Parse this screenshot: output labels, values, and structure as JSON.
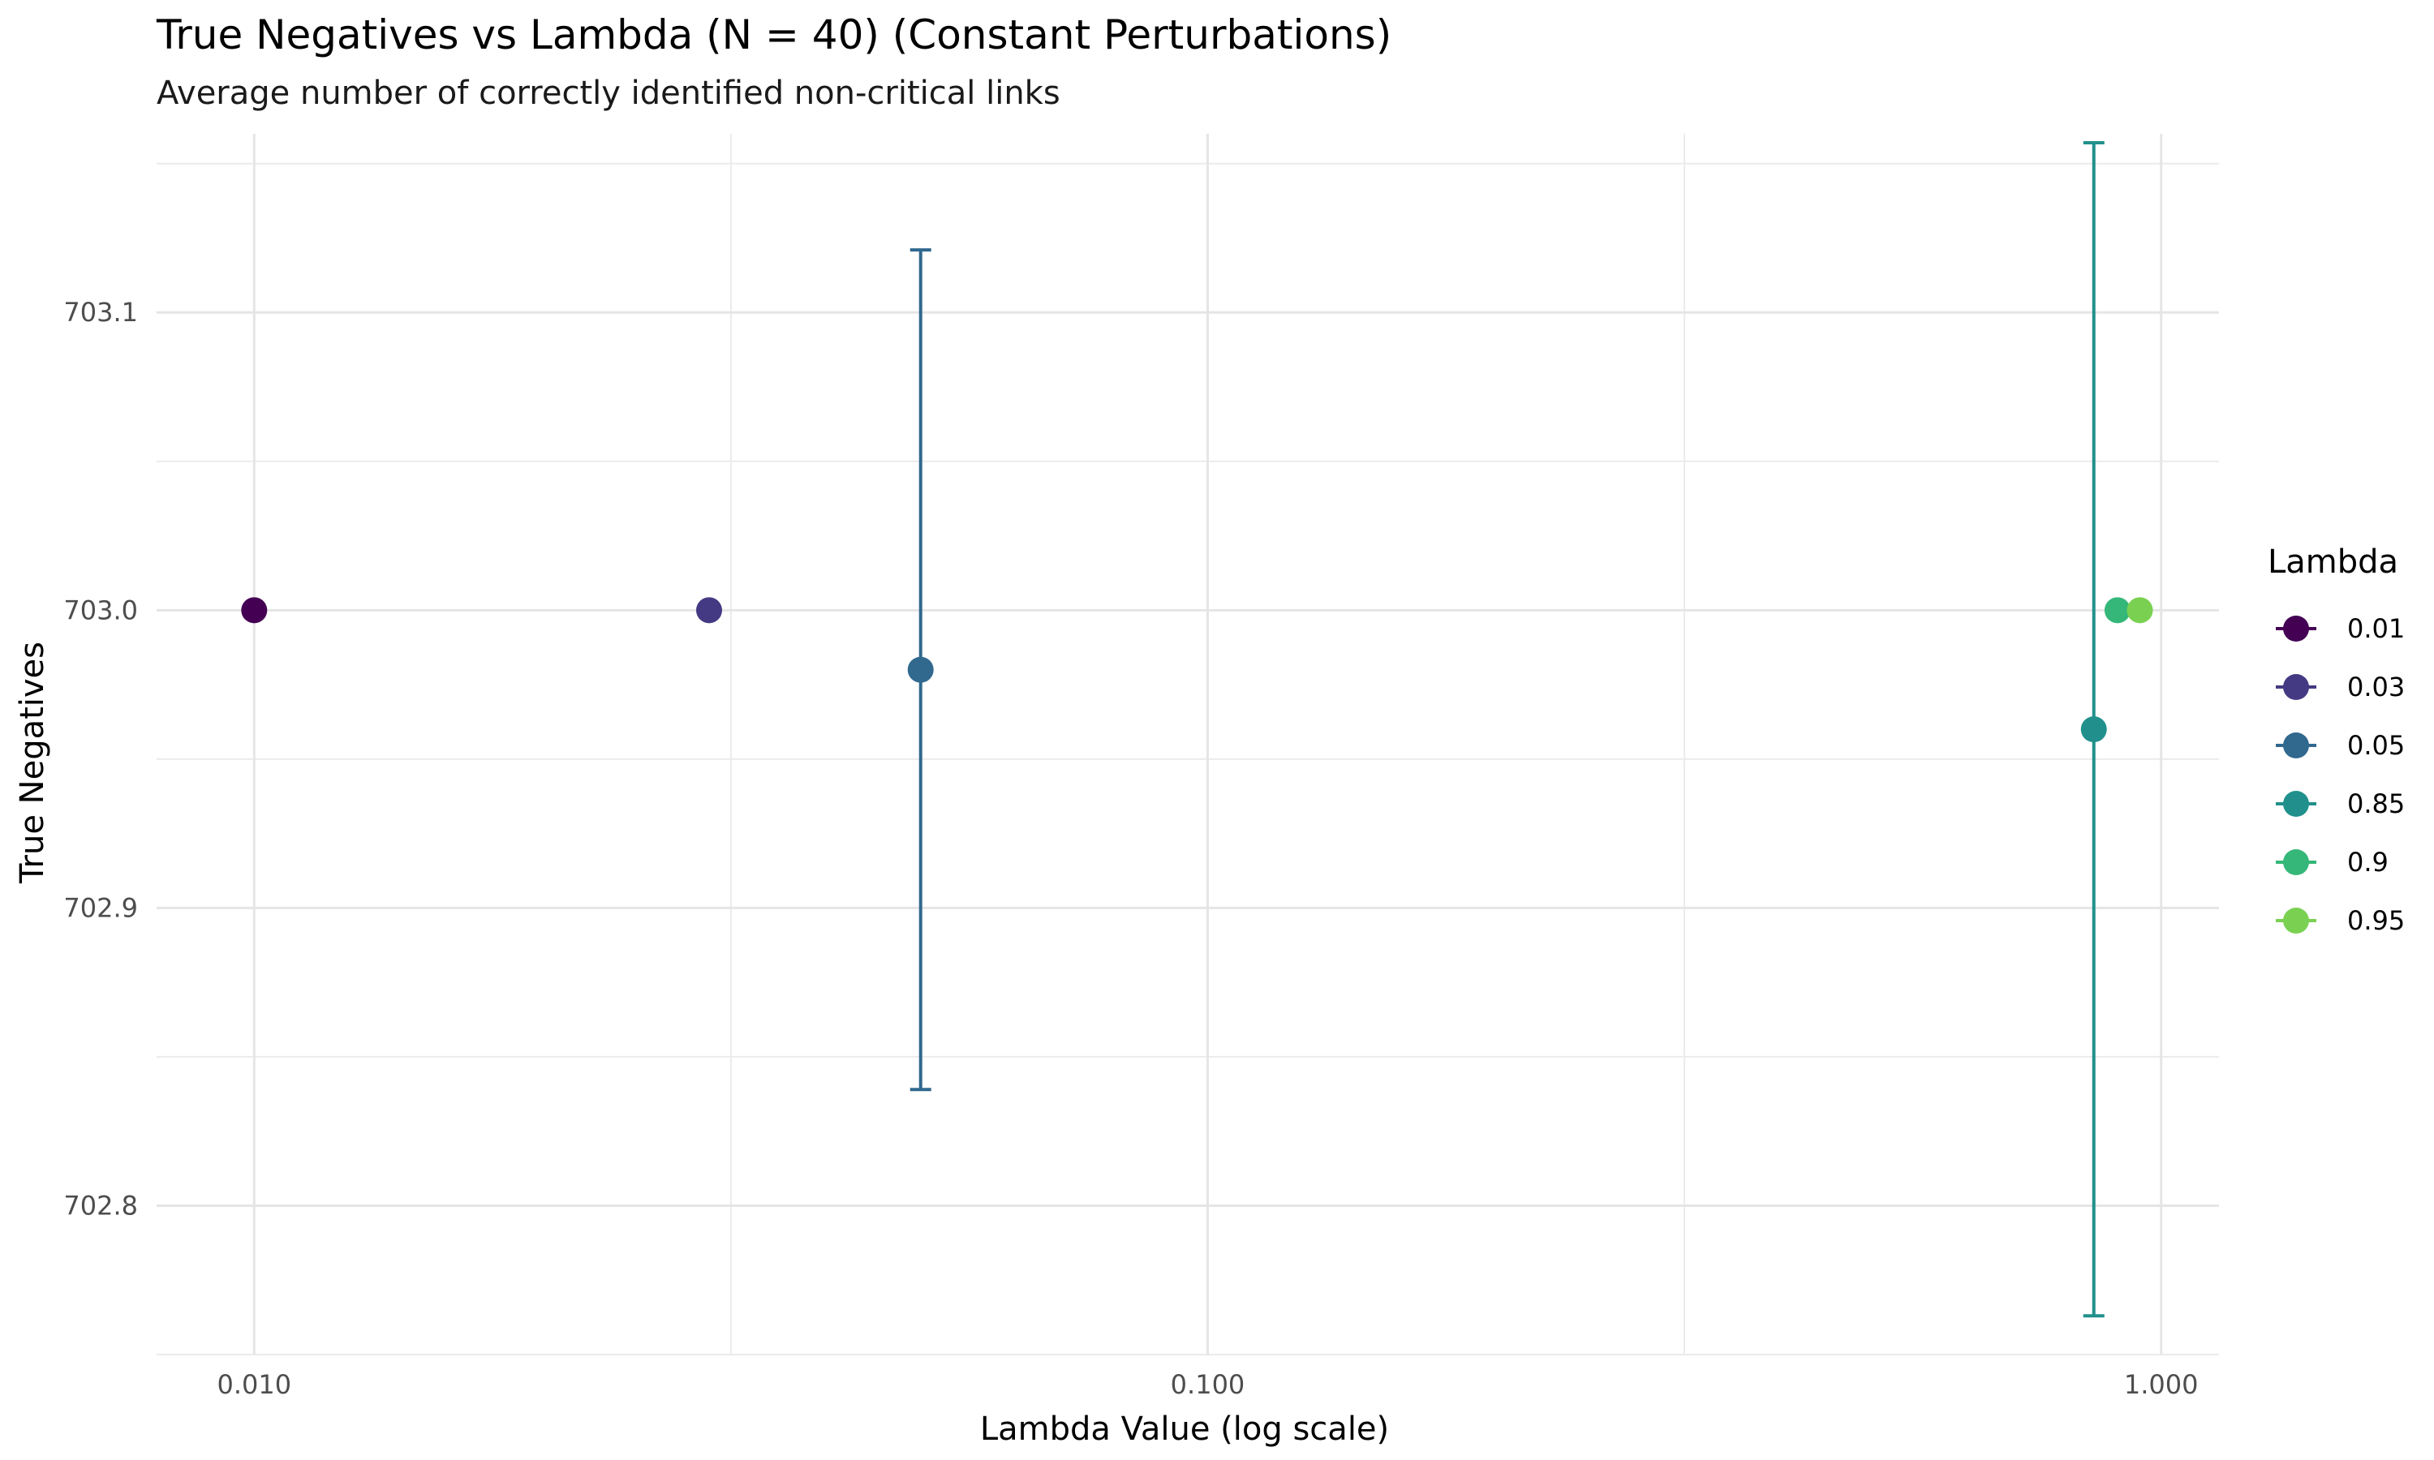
{
  "chart_data": {
    "type": "scatter",
    "title": "True Negatives vs Lambda (N = 40) (Constant Perturbations)",
    "subtitle": "Average number of correctly identified non-critical links",
    "xlabel": "Lambda Value (log scale)",
    "ylabel": "True Negatives",
    "x_scale": "log10",
    "xlim": [
      0.0079,
      1.15
    ],
    "ylim": [
      702.75,
      703.16
    ],
    "x_ticks": [
      {
        "value": 0.01,
        "label": "0.010"
      },
      {
        "value": 0.1,
        "label": "0.100"
      },
      {
        "value": 1.0,
        "label": "1.000"
      }
    ],
    "y_ticks": [
      {
        "value": 702.8,
        "label": "702.8"
      },
      {
        "value": 702.9,
        "label": "702.9"
      },
      {
        "value": 703.0,
        "label": "703.0"
      },
      {
        "value": 703.1,
        "label": "703.1"
      }
    ],
    "grid": true,
    "legend": {
      "title": "Lambda",
      "position": "right"
    },
    "series": [
      {
        "name": "0.01",
        "color": "#440154",
        "x": 0.01,
        "y": 703.0
      },
      {
        "name": "0.03",
        "color": "#443A83",
        "x": 0.03,
        "y": 703.0
      },
      {
        "name": "0.05",
        "color": "#31688E",
        "x": 0.05,
        "y": 702.98,
        "ymin": 702.839,
        "ymax": 703.121
      },
      {
        "name": "0.85",
        "color": "#21908C",
        "x": 0.85,
        "y": 702.96,
        "ymin": 702.763,
        "ymax": 703.157
      },
      {
        "name": "0.9",
        "color": "#35B779",
        "x": 0.9,
        "y": 703.0
      },
      {
        "name": "0.95",
        "color": "#7AD151",
        "x": 0.95,
        "y": 703.0
      }
    ]
  }
}
